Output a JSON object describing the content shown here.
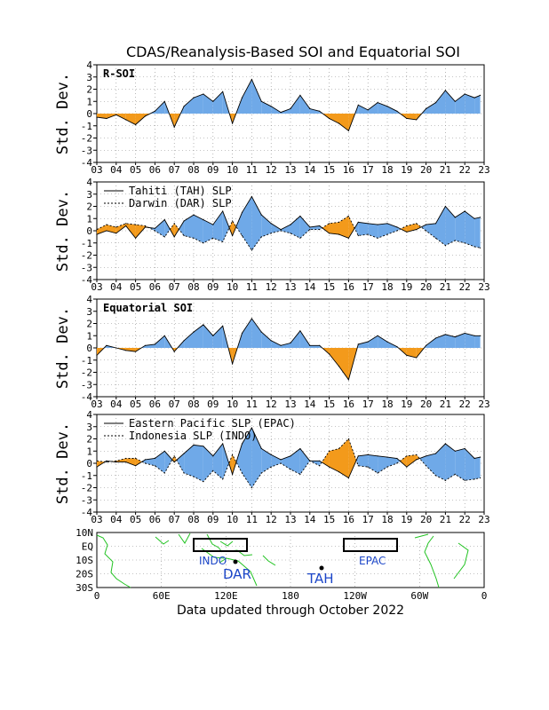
{
  "figure": {
    "title": "CDAS/Reanalysis-Based SOI and Equatorial SOI",
    "footer": "Data updated through October 2022",
    "ylabel": "Std. Dev.",
    "colors": {
      "positive": "#6fa9e8",
      "negative": "#f39a1b",
      "line": "#000000",
      "grid": "#888888",
      "land": "#22c322"
    }
  },
  "chart_data": [
    {
      "type": "area",
      "panel": "R-SOI",
      "title": "R-SOI",
      "ylabel": "Std. Dev.",
      "ylim": [
        -4,
        4
      ],
      "yticks": [
        4,
        3,
        2,
        1,
        0,
        -1,
        -2,
        -3,
        -4
      ],
      "xlim": [
        2003,
        2023
      ],
      "xticks": [
        "03",
        "04",
        "05",
        "06",
        "07",
        "08",
        "09",
        "10",
        "11",
        "12",
        "13",
        "14",
        "15",
        "16",
        "17",
        "18",
        "19",
        "20",
        "21",
        "22",
        "23"
      ],
      "x": [
        2003.0,
        2003.5,
        2004.0,
        2004.5,
        2005.0,
        2005.5,
        2006.0,
        2006.5,
        2007.0,
        2007.5,
        2008.0,
        2008.5,
        2009.0,
        2009.5,
        2010.0,
        2010.5,
        2011.0,
        2011.5,
        2012.0,
        2012.5,
        2013.0,
        2013.5,
        2014.0,
        2014.5,
        2015.0,
        2015.5,
        2016.0,
        2016.5,
        2017.0,
        2017.5,
        2018.0,
        2018.5,
        2019.0,
        2019.5,
        2020.0,
        2020.5,
        2021.0,
        2021.5,
        2022.0,
        2022.5,
        2022.8
      ],
      "series": [
        {
          "values": [
            -0.3,
            -0.4,
            -0.1,
            -0.5,
            -0.9,
            -0.2,
            0.2,
            1.0,
            -1.1,
            0.6,
            1.3,
            1.6,
            1.0,
            1.8,
            -0.8,
            1.3,
            2.8,
            1.0,
            0.6,
            0.1,
            0.4,
            1.5,
            0.4,
            0.2,
            -0.4,
            -0.8,
            -1.4,
            0.7,
            0.3,
            0.9,
            0.6,
            0.2,
            -0.4,
            -0.5,
            0.4,
            0.9,
            1.9,
            1.0,
            1.6,
            1.3,
            1.5
          ]
        }
      ]
    },
    {
      "type": "area",
      "panel": "Tahiti and Darwin SLP",
      "title": "",
      "ylabel": "Std. Dev.",
      "ylim": [
        -4,
        4
      ],
      "yticks": [
        4,
        3,
        2,
        1,
        0,
        -1,
        -2,
        -3,
        -4
      ],
      "xlim": [
        2003,
        2023
      ],
      "xticks": [
        "03",
        "04",
        "05",
        "06",
        "07",
        "08",
        "09",
        "10",
        "11",
        "12",
        "13",
        "14",
        "15",
        "16",
        "17",
        "18",
        "19",
        "20",
        "21",
        "22",
        "23"
      ],
      "legend": [
        "Tahiti (TAH) SLP",
        "Darwin (DAR) SLP"
      ],
      "x": [
        2003.0,
        2003.5,
        2004.0,
        2004.5,
        2005.0,
        2005.5,
        2006.0,
        2006.5,
        2007.0,
        2007.5,
        2008.0,
        2008.5,
        2009.0,
        2009.5,
        2010.0,
        2010.5,
        2011.0,
        2011.5,
        2012.0,
        2012.5,
        2013.0,
        2013.5,
        2014.0,
        2014.5,
        2015.0,
        2015.5,
        2016.0,
        2016.5,
        2017.0,
        2017.5,
        2018.0,
        2018.5,
        2019.0,
        2019.5,
        2020.0,
        2020.5,
        2021.0,
        2021.5,
        2022.0,
        2022.5,
        2022.8
      ],
      "series": [
        {
          "name": "Tahiti (TAH) SLP",
          "values": [
            -0.3,
            0.0,
            -0.2,
            0.4,
            -0.6,
            0.3,
            0.2,
            0.9,
            -0.5,
            0.8,
            1.3,
            0.9,
            0.5,
            1.6,
            -0.4,
            1.5,
            2.8,
            1.3,
            0.6,
            0.1,
            0.5,
            1.2,
            0.3,
            0.4,
            -0.2,
            -0.3,
            -0.6,
            0.7,
            0.6,
            0.5,
            0.6,
            0.3,
            -0.1,
            0.1,
            0.5,
            0.6,
            2.0,
            1.1,
            1.6,
            1.0,
            1.1
          ]
        },
        {
          "name": "Darwin (DAR) SLP",
          "values": [
            0.1,
            0.5,
            0.3,
            0.6,
            0.5,
            0.4,
            0.0,
            -0.5,
            0.6,
            -0.4,
            -0.6,
            -1.0,
            -0.6,
            -0.9,
            0.8,
            -0.4,
            -1.6,
            -0.5,
            -0.2,
            0.0,
            -0.2,
            -0.6,
            0.1,
            0.1,
            0.6,
            0.7,
            1.2,
            -0.4,
            -0.3,
            -0.6,
            -0.3,
            0.0,
            0.4,
            0.6,
            0.0,
            -0.6,
            -1.2,
            -0.8,
            -1.0,
            -1.3,
            -1.4
          ]
        }
      ]
    },
    {
      "type": "area",
      "panel": "Equatorial SOI",
      "title": "Equatorial SOI",
      "ylabel": "Std. Dev.",
      "ylim": [
        -4,
        4
      ],
      "yticks": [
        4,
        3,
        2,
        1,
        0,
        -1,
        -2,
        -3,
        -4
      ],
      "xlim": [
        2003,
        2023
      ],
      "xticks": [
        "03",
        "04",
        "05",
        "06",
        "07",
        "08",
        "09",
        "10",
        "11",
        "12",
        "13",
        "14",
        "15",
        "16",
        "17",
        "18",
        "19",
        "20",
        "21",
        "22",
        "23"
      ],
      "x": [
        2003.0,
        2003.5,
        2004.0,
        2004.5,
        2005.0,
        2005.5,
        2006.0,
        2006.5,
        2007.0,
        2007.5,
        2008.0,
        2008.5,
        2009.0,
        2009.5,
        2010.0,
        2010.5,
        2011.0,
        2011.5,
        2012.0,
        2012.5,
        2013.0,
        2013.5,
        2014.0,
        2014.5,
        2015.0,
        2015.5,
        2016.0,
        2016.5,
        2017.0,
        2017.5,
        2018.0,
        2018.5,
        2019.0,
        2019.5,
        2020.0,
        2020.5,
        2021.0,
        2021.5,
        2022.0,
        2022.5,
        2022.8
      ],
      "series": [
        {
          "values": [
            -0.6,
            0.2,
            0.0,
            -0.2,
            -0.3,
            0.2,
            0.3,
            1.0,
            -0.3,
            0.6,
            1.3,
            1.9,
            1.0,
            1.8,
            -1.3,
            1.2,
            2.4,
            1.3,
            0.6,
            0.2,
            0.4,
            1.4,
            0.2,
            0.2,
            -0.5,
            -1.5,
            -2.6,
            0.3,
            0.5,
            1.0,
            0.5,
            0.1,
            -0.6,
            -0.8,
            0.2,
            0.8,
            1.1,
            0.9,
            1.2,
            1.0,
            1.0
          ]
        }
      ]
    },
    {
      "type": "area",
      "panel": "EPAC and INDO SLP",
      "title": "",
      "ylabel": "Std. Dev.",
      "ylim": [
        -4,
        4
      ],
      "yticks": [
        4,
        3,
        2,
        1,
        0,
        -1,
        -2,
        -3,
        -4
      ],
      "xlim": [
        2003,
        2023
      ],
      "xticks": [
        "03",
        "04",
        "05",
        "06",
        "07",
        "08",
        "09",
        "10",
        "11",
        "12",
        "13",
        "14",
        "15",
        "16",
        "17",
        "18",
        "19",
        "20",
        "21",
        "22",
        "23"
      ],
      "legend": [
        "Eastern Pacific SLP (EPAC)",
        "Indonesia SLP (INDO)"
      ],
      "x": [
        2003.0,
        2003.5,
        2004.0,
        2004.5,
        2005.0,
        2005.5,
        2006.0,
        2006.5,
        2007.0,
        2007.5,
        2008.0,
        2008.5,
        2009.0,
        2009.5,
        2010.0,
        2010.5,
        2011.0,
        2011.5,
        2012.0,
        2012.5,
        2013.0,
        2013.5,
        2014.0,
        2014.5,
        2015.0,
        2015.5,
        2016.0,
        2016.5,
        2017.0,
        2017.5,
        2018.0,
        2018.5,
        2019.0,
        2019.5,
        2020.0,
        2020.5,
        2021.0,
        2021.5,
        2022.0,
        2022.5,
        2022.8
      ],
      "series": [
        {
          "name": "Eastern Pacific SLP (EPAC)",
          "values": [
            -0.3,
            0.2,
            0.1,
            0.1,
            -0.2,
            0.3,
            0.4,
            1.0,
            0.1,
            0.8,
            1.5,
            1.4,
            0.6,
            1.6,
            -0.9,
            1.6,
            2.9,
            1.2,
            0.7,
            0.3,
            0.6,
            1.2,
            0.2,
            0.2,
            -0.3,
            -0.7,
            -1.2,
            0.6,
            0.7,
            0.6,
            0.5,
            0.4,
            -0.3,
            0.3,
            0.6,
            0.8,
            1.6,
            1.0,
            1.2,
            0.4,
            0.5
          ]
        },
        {
          "name": "Indonesia SLP (INDO)",
          "values": [
            0.2,
            0.1,
            0.2,
            0.4,
            0.4,
            0.0,
            -0.2,
            -0.8,
            0.6,
            -0.8,
            -1.1,
            -1.5,
            -0.6,
            -1.3,
            0.7,
            -0.8,
            -2.0,
            -0.8,
            -0.3,
            0.0,
            -0.5,
            -0.9,
            0.2,
            -0.2,
            1.0,
            1.2,
            2.0,
            -0.2,
            -0.3,
            -0.8,
            -0.3,
            0.0,
            0.6,
            0.7,
            -0.2,
            -1.0,
            -1.4,
            -0.9,
            -1.4,
            -1.3,
            -1.2
          ]
        }
      ]
    }
  ],
  "map": {
    "ylabels": [
      "10N",
      "EQ",
      "10S",
      "20S",
      "30S"
    ],
    "xlabels": [
      "0",
      "60E",
      "120E",
      "180",
      "120W",
      "60W",
      "0"
    ],
    "regions": [
      "INDO",
      "EPAC"
    ],
    "stations": [
      "DAR",
      "TAH"
    ]
  }
}
